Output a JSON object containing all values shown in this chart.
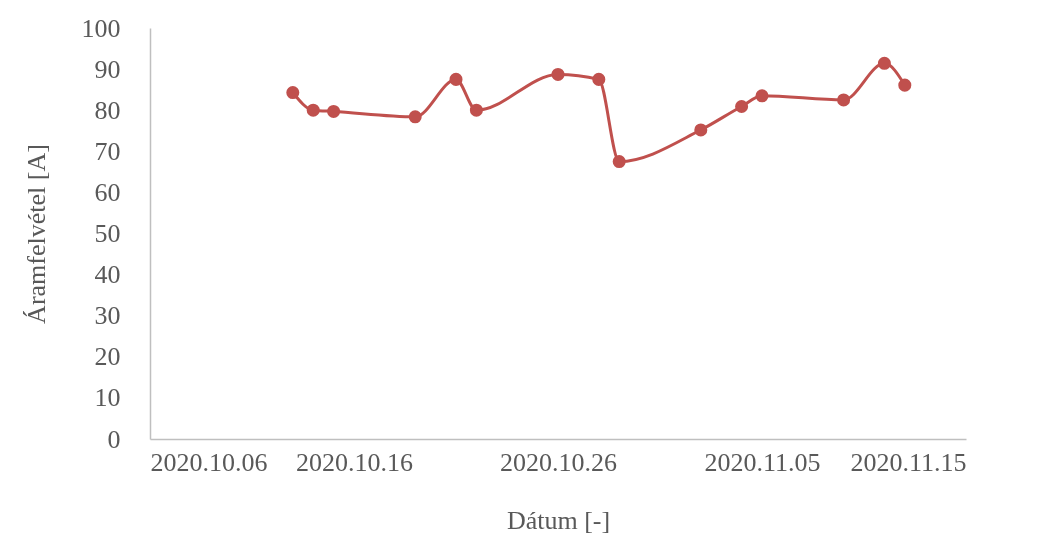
{
  "chart_data": {
    "type": "line",
    "xlabel": "Dátum [-]",
    "ylabel": "Áramfelvétel [A]",
    "x": [
      "2020-10-13",
      "2020-10-14",
      "2020-10-15",
      "2020-10-19",
      "2020-10-21",
      "2020-10-22",
      "2020-10-26",
      "2020-10-28",
      "2020-10-29",
      "2020-11-02",
      "2020-11-04",
      "2020-11-05",
      "2020-11-09",
      "2020-11-11",
      "2020-11-12"
    ],
    "series": [
      {
        "color": "#c0504d",
        "values": [
          84.3,
          80.0,
          79.7,
          78.4,
          87.5,
          80.0,
          88.7,
          87.5,
          67.5,
          75.2,
          80.9,
          83.5,
          82.5,
          91.4,
          86.1
        ]
      }
    ],
    "xlim": [
      "2020-10-06",
      "2020-11-15"
    ],
    "xticks": [
      {
        "value": "2020-10-06",
        "label": "2020.10.06"
      },
      {
        "value": "2020-10-16",
        "label": "2020.10.16"
      },
      {
        "value": "2020-10-26",
        "label": "2020.10.26"
      },
      {
        "value": "2020-11-05",
        "label": "2020.11.05"
      },
      {
        "value": "2020-11-15",
        "label": "2020.11.15"
      }
    ],
    "ylim": [
      0,
      100
    ],
    "yticks": [
      0,
      10,
      20,
      30,
      40,
      50,
      60,
      70,
      80,
      90,
      100
    ],
    "grid": false,
    "marker": "circle",
    "line_style": "solid"
  }
}
